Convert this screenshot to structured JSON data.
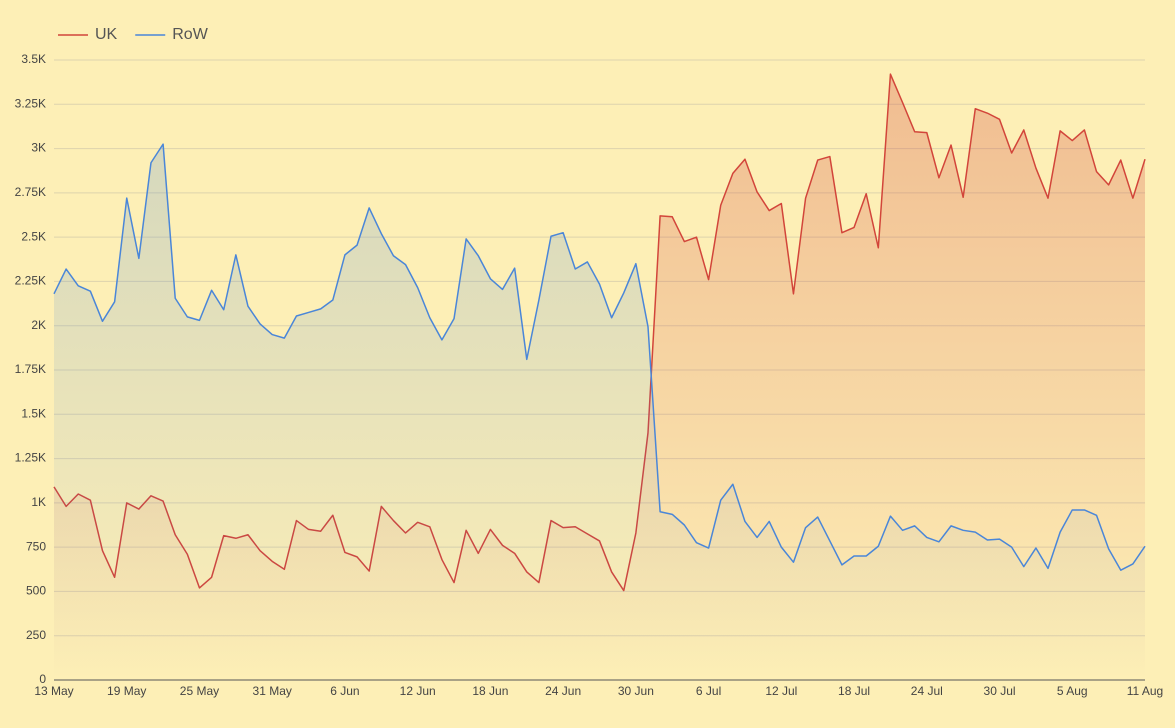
{
  "chart_data": {
    "type": "line",
    "categories": [
      "13 May",
      null,
      null,
      null,
      null,
      null,
      "19 May",
      null,
      null,
      null,
      null,
      null,
      "25 May",
      null,
      null,
      null,
      null,
      null,
      "31 May",
      null,
      null,
      null,
      null,
      null,
      "6 Jun",
      null,
      null,
      null,
      null,
      null,
      "12 Jun",
      null,
      null,
      null,
      null,
      null,
      "18 Jun",
      null,
      null,
      null,
      null,
      null,
      "24 Jun",
      null,
      null,
      null,
      null,
      null,
      "30 Jun",
      null,
      null,
      null,
      null,
      null,
      "6 Jul",
      null,
      null,
      null,
      null,
      null,
      "12 Jul",
      null,
      null,
      null,
      null,
      null,
      "18 Jul",
      null,
      null,
      null,
      null,
      null,
      "24 Jul",
      null,
      null,
      null,
      null,
      null,
      "30 Jul",
      null,
      null,
      null,
      null,
      null,
      "5 Aug",
      null,
      null,
      null,
      null,
      null,
      "11 Aug"
    ],
    "series": [
      {
        "name": "UK",
        "color": "#d2453a",
        "values": [
          1090,
          980,
          1050,
          1015,
          730,
          580,
          1000,
          965,
          1040,
          1010,
          820,
          710,
          520,
          580,
          815,
          800,
          820,
          730,
          670,
          625,
          900,
          850,
          840,
          930,
          720,
          695,
          615,
          980,
          900,
          830,
          890,
          865,
          680,
          550,
          845,
          715,
          850,
          760,
          715,
          610,
          550,
          900,
          860,
          865,
          825,
          785,
          610,
          505,
          830,
          1395,
          2620,
          2615,
          2475,
          2500,
          2260,
          2680,
          2860,
          2940,
          2755,
          2650,
          2690,
          2180,
          2720,
          2935,
          2955,
          2525,
          2555,
          2745,
          2440,
          3420,
          3260,
          3095,
          3090,
          2835,
          3020,
          2725,
          3225,
          3200,
          3165,
          2975,
          3105,
          2890,
          2720,
          3100,
          3045,
          3105,
          2870,
          2795,
          2935,
          2720,
          2940
        ]
      },
      {
        "name": "RoW",
        "color": "#4a86d8",
        "values": [
          2180,
          2320,
          2225,
          2195,
          2025,
          2135,
          2720,
          2380,
          2920,
          3025,
          2155,
          2050,
          2030,
          2200,
          2090,
          2400,
          2110,
          2010,
          1950,
          1930,
          2055,
          2075,
          2095,
          2145,
          2400,
          2455,
          2665,
          2520,
          2395,
          2345,
          2215,
          2045,
          1920,
          2040,
          2490,
          2395,
          2265,
          2205,
          2325,
          1810,
          2145,
          2505,
          2525,
          2320,
          2360,
          2235,
          2045,
          2185,
          2350,
          1995,
          950,
          935,
          875,
          775,
          745,
          1015,
          1105,
          895,
          805,
          895,
          750,
          665,
          860,
          920,
          785,
          650,
          700,
          700,
          755,
          925,
          845,
          870,
          805,
          780,
          870,
          845,
          835,
          790,
          795,
          750,
          640,
          745,
          630,
          835,
          960,
          960,
          930,
          740,
          620,
          655,
          755
        ]
      }
    ],
    "ylim": [
      0,
      3500
    ],
    "yticks": [
      0,
      250,
      500,
      750,
      {
        "value": 1000,
        "label": "1K"
      },
      {
        "value": 1250,
        "label": "1.25K"
      },
      {
        "value": 1500,
        "label": "1.5K"
      },
      {
        "value": 1750,
        "label": "1.75K"
      },
      {
        "value": 2000,
        "label": "2K"
      },
      {
        "value": 2250,
        "label": "2.25K"
      },
      {
        "value": 2500,
        "label": "2.5K"
      },
      {
        "value": 2750,
        "label": "2.75K"
      },
      {
        "value": 3000,
        "label": "3K"
      },
      {
        "value": 3250,
        "label": "3.25K"
      },
      {
        "value": 3500,
        "label": "3.5K"
      }
    ],
    "grid": true,
    "area": true,
    "legend": "top-left"
  }
}
